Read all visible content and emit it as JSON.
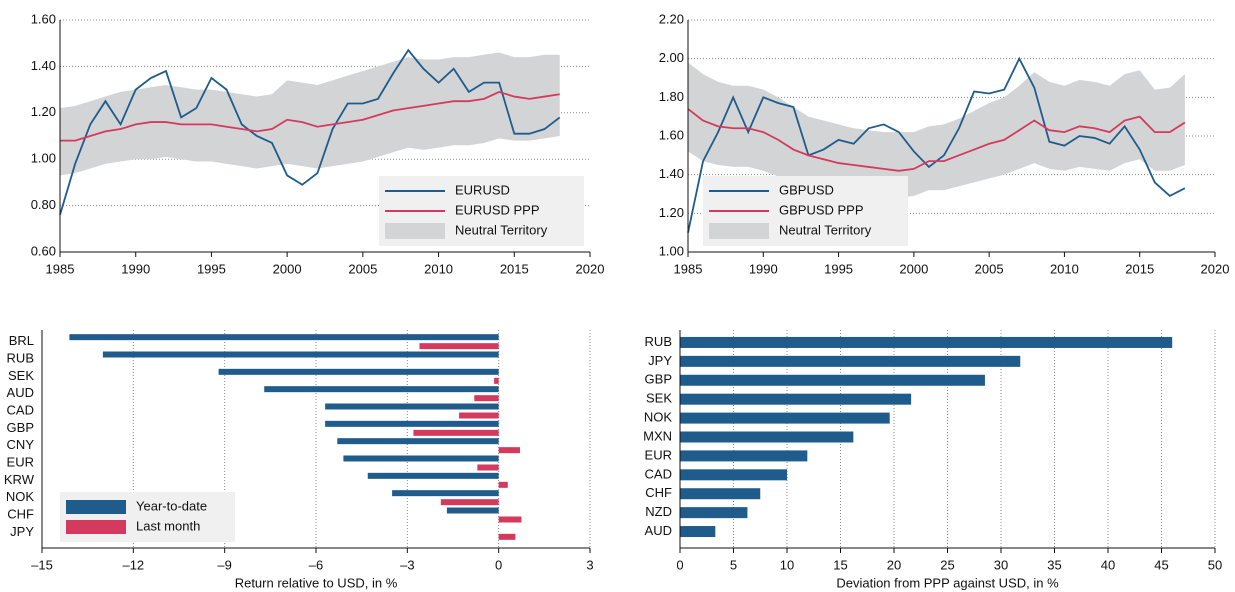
{
  "chart_data": [
    {
      "type": "line",
      "xlim": [
        1985,
        2020
      ],
      "xticks": [
        1985,
        1990,
        1995,
        2000,
        2005,
        2010,
        2015,
        2020
      ],
      "ylim": [
        0.6,
        1.6
      ],
      "yticks": [
        {
          "value": 0.6,
          "label": "0.60"
        },
        {
          "value": 0.8,
          "label": "0.80"
        },
        {
          "value": 1.0,
          "label": "1.00"
        },
        {
          "value": 1.2,
          "label": "1.20"
        },
        {
          "value": 1.4,
          "label": "1.40"
        },
        {
          "value": 1.6,
          "label": "1.60"
        }
      ],
      "grid": "y",
      "legend": "lower right",
      "x": [
        1985,
        1986,
        1987,
        1988,
        1989,
        1990,
        1991,
        1992,
        1993,
        1994,
        1995,
        1996,
        1997,
        1998,
        1999,
        2000,
        2001,
        2002,
        2003,
        2004,
        2005,
        2006,
        2007,
        2008,
        2009,
        2010,
        2011,
        2012,
        2013,
        2014,
        2015,
        2016,
        2017,
        2018
      ],
      "series": [
        {
          "name": "EURUSD",
          "color": "#1f5c8b",
          "values": [
            0.76,
            0.98,
            1.15,
            1.25,
            1.15,
            1.3,
            1.35,
            1.38,
            1.18,
            1.22,
            1.35,
            1.3,
            1.15,
            1.1,
            1.07,
            0.93,
            0.89,
            0.94,
            1.13,
            1.24,
            1.24,
            1.26,
            1.37,
            1.47,
            1.39,
            1.33,
            1.39,
            1.29,
            1.33,
            1.33,
            1.11,
            1.11,
            1.13,
            1.18
          ]
        },
        {
          "name": "EURUSD PPP",
          "color": "#d33a5e",
          "values": [
            1.08,
            1.08,
            1.1,
            1.12,
            1.13,
            1.15,
            1.16,
            1.16,
            1.15,
            1.15,
            1.15,
            1.14,
            1.13,
            1.12,
            1.13,
            1.17,
            1.16,
            1.14,
            1.15,
            1.16,
            1.17,
            1.19,
            1.21,
            1.22,
            1.23,
            1.24,
            1.25,
            1.25,
            1.26,
            1.29,
            1.27,
            1.26,
            1.27,
            1.28
          ]
        },
        {
          "name": "Neutral Territory",
          "color": "#d3d4d6",
          "lower": [
            0.93,
            0.94,
            0.96,
            0.98,
            0.99,
            1.0,
            1.0,
            1.01,
            1.0,
            0.99,
            0.99,
            0.98,
            0.97,
            0.96,
            0.97,
            0.98,
            0.97,
            0.96,
            0.97,
            0.98,
            0.99,
            1.01,
            1.03,
            1.05,
            1.04,
            1.05,
            1.06,
            1.06,
            1.07,
            1.09,
            1.08,
            1.08,
            1.09,
            1.1
          ],
          "upper": [
            1.22,
            1.23,
            1.25,
            1.27,
            1.29,
            1.3,
            1.31,
            1.32,
            1.31,
            1.3,
            1.3,
            1.29,
            1.28,
            1.27,
            1.28,
            1.34,
            1.33,
            1.32,
            1.34,
            1.36,
            1.38,
            1.4,
            1.42,
            1.44,
            1.43,
            1.43,
            1.44,
            1.44,
            1.45,
            1.46,
            1.44,
            1.44,
            1.45,
            1.45
          ]
        }
      ]
    },
    {
      "type": "line",
      "xlim": [
        1985,
        2020
      ],
      "xticks": [
        1985,
        1990,
        1995,
        2000,
        2005,
        2010,
        2015,
        2020
      ],
      "ylim": [
        1.0,
        2.2
      ],
      "yticks": [
        {
          "value": 1.0,
          "label": "1.00"
        },
        {
          "value": 1.2,
          "label": "1.20"
        },
        {
          "value": 1.4,
          "label": "1.40"
        },
        {
          "value": 1.6,
          "label": "1.60"
        },
        {
          "value": 1.8,
          "label": "1.80"
        },
        {
          "value": 2.0,
          "label": "2.00"
        },
        {
          "value": 2.2,
          "label": "2.20"
        }
      ],
      "grid": "y",
      "legend": "lower left",
      "x": [
        1985,
        1986,
        1987,
        1988,
        1989,
        1990,
        1991,
        1992,
        1993,
        1994,
        1995,
        1996,
        1997,
        1998,
        1999,
        2000,
        2001,
        2002,
        2003,
        2004,
        2005,
        2006,
        2007,
        2008,
        2009,
        2010,
        2011,
        2012,
        2013,
        2014,
        2015,
        2016,
        2017,
        2018
      ],
      "series": [
        {
          "name": "GBPUSD",
          "color": "#1f5c8b",
          "values": [
            1.1,
            1.47,
            1.62,
            1.8,
            1.62,
            1.8,
            1.77,
            1.75,
            1.5,
            1.53,
            1.58,
            1.56,
            1.64,
            1.66,
            1.62,
            1.52,
            1.44,
            1.5,
            1.64,
            1.83,
            1.82,
            1.84,
            2.0,
            1.85,
            1.57,
            1.55,
            1.6,
            1.59,
            1.56,
            1.65,
            1.53,
            1.36,
            1.29,
            1.33
          ]
        },
        {
          "name": "GBPUSD PPP",
          "color": "#d33a5e",
          "values": [
            1.74,
            1.68,
            1.65,
            1.64,
            1.64,
            1.62,
            1.58,
            1.53,
            1.5,
            1.48,
            1.46,
            1.45,
            1.44,
            1.43,
            1.42,
            1.43,
            1.47,
            1.47,
            1.5,
            1.53,
            1.56,
            1.58,
            1.63,
            1.68,
            1.63,
            1.62,
            1.65,
            1.64,
            1.62,
            1.68,
            1.7,
            1.62,
            1.62,
            1.67
          ]
        },
        {
          "name": "Neutral Territory",
          "color": "#d3d4d6",
          "lower": [
            1.52,
            1.47,
            1.45,
            1.44,
            1.44,
            1.42,
            1.39,
            1.35,
            1.32,
            1.31,
            1.3,
            1.29,
            1.28,
            1.28,
            1.28,
            1.29,
            1.32,
            1.32,
            1.34,
            1.36,
            1.38,
            1.4,
            1.43,
            1.46,
            1.43,
            1.42,
            1.44,
            1.43,
            1.42,
            1.46,
            1.48,
            1.42,
            1.42,
            1.45
          ],
          "upper": [
            1.98,
            1.92,
            1.88,
            1.86,
            1.86,
            1.84,
            1.8,
            1.75,
            1.7,
            1.68,
            1.66,
            1.64,
            1.63,
            1.62,
            1.62,
            1.62,
            1.65,
            1.66,
            1.69,
            1.73,
            1.77,
            1.8,
            1.86,
            1.93,
            1.88,
            1.86,
            1.89,
            1.88,
            1.86,
            1.92,
            1.94,
            1.84,
            1.85,
            1.92
          ]
        }
      ]
    },
    {
      "type": "hbar",
      "xlabel": "Return relative to USD, in %",
      "xlim": [
        -15,
        3
      ],
      "xticks": [
        {
          "value": -15,
          "label": "–15"
        },
        {
          "value": -12,
          "label": "–12"
        },
        {
          "value": -9,
          "label": "–9"
        },
        {
          "value": -6,
          "label": "–6"
        },
        {
          "value": -3,
          "label": "–3"
        },
        0,
        3
      ],
      "grid": "x",
      "legend": "lower left",
      "categories": [
        "BRL",
        "RUB",
        "SEK",
        "AUD",
        "CAD",
        "GBP",
        "CNY",
        "EUR",
        "KRW",
        "NOK",
        "CHF",
        "JPY"
      ],
      "series": [
        {
          "name": "Year-to-date",
          "color": "#1f5c8b",
          "values": [
            -14.1,
            -13.0,
            -9.2,
            -7.7,
            -5.7,
            -5.7,
            -5.3,
            -5.1,
            -4.3,
            -3.5,
            -1.7,
            0
          ]
        },
        {
          "name": "Last month",
          "color": "#d33a5e",
          "values": [
            -2.6,
            0,
            -0.15,
            -0.8,
            -1.3,
            -2.8,
            0.7,
            -0.7,
            0.3,
            -1.9,
            0.75,
            0.55
          ]
        }
      ]
    },
    {
      "type": "hbar",
      "xlabel": "Deviation from PPP against USD, in %",
      "xlim": [
        0,
        50
      ],
      "xticks": [
        0,
        5,
        10,
        15,
        20,
        25,
        30,
        35,
        40,
        45,
        50
      ],
      "grid": "x",
      "categories": [
        "RUB",
        "JPY",
        "GBP",
        "SEK",
        "NOK",
        "MXN",
        "EUR",
        "CAD",
        "CHF",
        "NZD",
        "AUD"
      ],
      "series": [
        {
          "color": "#1f5c8b",
          "values": [
            46,
            31.8,
            28.5,
            21.6,
            19.6,
            16.2,
            11.9,
            10,
            7.5,
            6.3,
            3.3
          ]
        }
      ]
    }
  ]
}
